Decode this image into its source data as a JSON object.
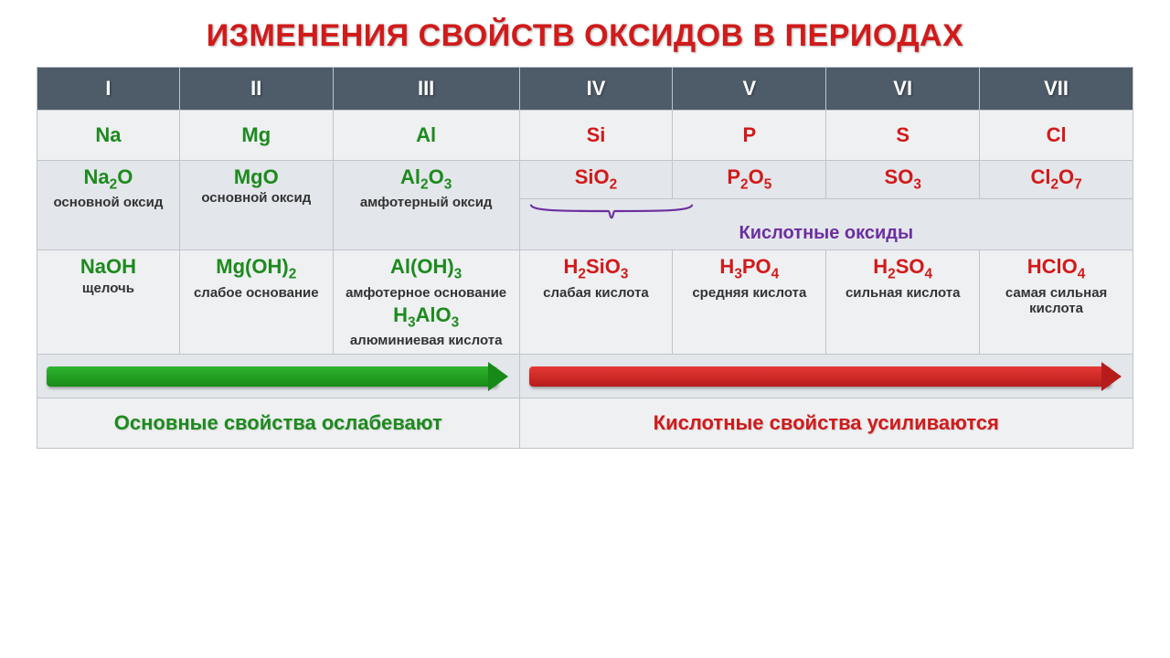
{
  "title": {
    "text": "ИЗМЕНЕНИЯ СВОЙСТВ ОКСИДОВ В ПЕРИОДАХ",
    "color": "#d11a1a",
    "fontsize": 34
  },
  "colors": {
    "header_bg": "#4e5b68",
    "header_fg": "#ffffff",
    "row_bg_a": "#eef0f2",
    "row_bg_b": "#e3e6ea",
    "border": "#bfc5ca",
    "basic": "#1d8a1d",
    "acidic": "#d11a1a",
    "bracket": "#6b2fa0",
    "desc_text": "#333333",
    "arrow_green_from": "#2fb52f",
    "arrow_green_to": "#178a17",
    "arrow_red_from": "#e53935",
    "arrow_red_to": "#b71c1c"
  },
  "groups": [
    "I",
    "II",
    "III",
    "IV",
    "V",
    "VI",
    "VII"
  ],
  "elements": [
    {
      "sym": "Na",
      "side": "basic"
    },
    {
      "sym": "Mg",
      "side": "basic"
    },
    {
      "sym": "Al",
      "side": "basic"
    },
    {
      "sym": "Si",
      "side": "acidic"
    },
    {
      "sym": "P",
      "side": "acidic"
    },
    {
      "sym": "S",
      "side": "acidic"
    },
    {
      "sym": "Cl",
      "side": "acidic"
    }
  ],
  "oxides_basic": [
    {
      "formula_html": "Na<sub>2</sub>O",
      "desc": "основной оксид"
    },
    {
      "formula_html": "MgO",
      "desc": "основной оксид"
    },
    {
      "formula_html": "Al<sub>2</sub>O<sub>3</sub>",
      "desc": "амфотерный оксид"
    }
  ],
  "oxides_acidic_formulas": [
    "SiO<sub>2</sub>",
    "P<sub>2</sub>O<sub>5</sub>",
    "SO<sub>3</sub>",
    "Cl<sub>2</sub>O<sub>7</sub>"
  ],
  "acidic_bracket_label": "Кислотные оксиды",
  "hydroxides": [
    {
      "side": "basic",
      "blocks": [
        {
          "f": "NaOH",
          "d": "щелочь"
        }
      ]
    },
    {
      "side": "basic",
      "blocks": [
        {
          "f": "Mg(OH)<sub>2</sub>",
          "d": "слабое основание"
        }
      ]
    },
    {
      "side": "basic",
      "blocks": [
        {
          "f": "Al(OH)<sub>3</sub>",
          "d": "амфотерное основание"
        },
        {
          "f": "H<sub>3</sub>AlO<sub>3</sub>",
          "d": "алюминиевая кислота"
        }
      ]
    },
    {
      "side": "acidic",
      "blocks": [
        {
          "f": "H<sub>2</sub>SiO<sub>3</sub>",
          "d": "слабая кислота"
        }
      ]
    },
    {
      "side": "acidic",
      "blocks": [
        {
          "f": "H<sub>3</sub>PO<sub>4</sub>",
          "d": "средняя кислота"
        }
      ]
    },
    {
      "side": "acidic",
      "blocks": [
        {
          "f": "H<sub>2</sub>SO<sub>4</sub>",
          "d": "сильная кислота"
        }
      ]
    },
    {
      "side": "acidic",
      "blocks": [
        {
          "f": "HClO<sub>4</sub>",
          "d": "самая сильная кислота"
        }
      ]
    }
  ],
  "trend_left": "Основные свойства ослабевают",
  "trend_right": "Кислотные свойства усиливаются",
  "layout": {
    "col_widths_pct": [
      13,
      14,
      17,
      14,
      14,
      14,
      14
    ],
    "title_fontsize": 34,
    "header_fontsize": 22,
    "formula_fontsize": 22,
    "desc_fontsize": 15,
    "caption_fontsize": 22
  }
}
